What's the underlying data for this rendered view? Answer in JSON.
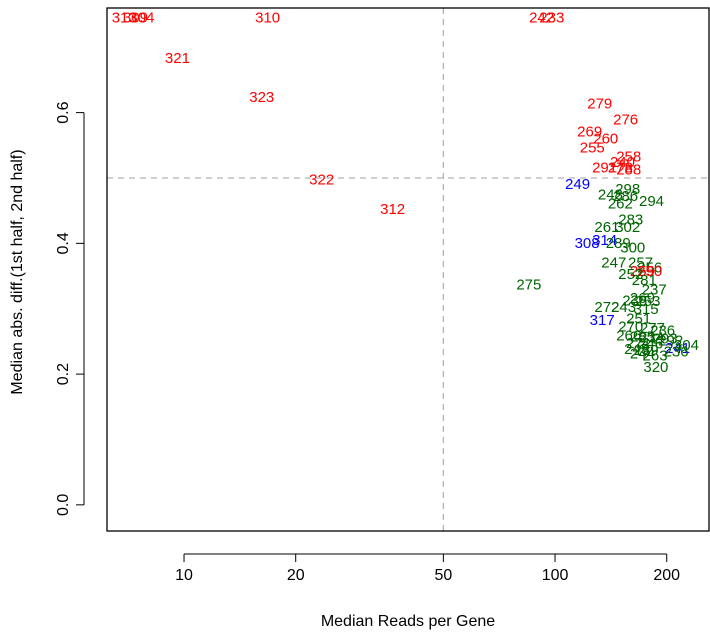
{
  "chart_data": {
    "type": "scatter",
    "title": "",
    "xlabel": "Median Reads per Gene",
    "ylabel": "Median abs. diff.(1st half, 2nd half)",
    "x_scale": "log",
    "xlim": [
      6.2,
      260
    ],
    "ylim": [
      -0.04,
      0.76
    ],
    "x_ticks": [
      10,
      20,
      50,
      100,
      200
    ],
    "y_ticks": [
      0.0,
      0.2,
      0.4,
      0.6
    ],
    "x_tick_labels": [
      "10",
      "20",
      "50",
      "100",
      "200"
    ],
    "y_tick_labels": [
      "0.0",
      "0.2",
      "0.4",
      "0.6"
    ],
    "reference_lines": {
      "x": 50,
      "y": 0.5,
      "style": "dashed",
      "color": "#b3b3b3"
    },
    "grid": false,
    "colors": {
      "red": "#ff0000",
      "blue": "#0000ff",
      "green": "#006400"
    },
    "points": [
      {
        "label": "313",
        "x": 6.9,
        "y": 0.745,
        "color": "red"
      },
      {
        "label": "309",
        "x": 7.4,
        "y": 0.745,
        "color": "red"
      },
      {
        "label": "304",
        "x": 7.7,
        "y": 0.745,
        "color": "red"
      },
      {
        "label": "310",
        "x": 16.8,
        "y": 0.745,
        "color": "red"
      },
      {
        "label": "321",
        "x": 9.6,
        "y": 0.683,
        "color": "red"
      },
      {
        "label": "323",
        "x": 16.2,
        "y": 0.623,
        "color": "red"
      },
      {
        "label": "322",
        "x": 23.5,
        "y": 0.497,
        "color": "red"
      },
      {
        "label": "312",
        "x": 36.5,
        "y": 0.452,
        "color": "red"
      },
      {
        "label": "242",
        "x": 92,
        "y": 0.745,
        "color": "red"
      },
      {
        "label": "233",
        "x": 98,
        "y": 0.745,
        "color": "red"
      },
      {
        "label": "279",
        "x": 132,
        "y": 0.613,
        "color": "red"
      },
      {
        "label": "276",
        "x": 155,
        "y": 0.589,
        "color": "red"
      },
      {
        "label": "269",
        "x": 124,
        "y": 0.57,
        "color": "red"
      },
      {
        "label": "260",
        "x": 137,
        "y": 0.56,
        "color": "red"
      },
      {
        "label": "255",
        "x": 126,
        "y": 0.546,
        "color": "red"
      },
      {
        "label": "258",
        "x": 158,
        "y": 0.532,
        "color": "red"
      },
      {
        "label": "240",
        "x": 152,
        "y": 0.524,
        "color": "red"
      },
      {
        "label": "291",
        "x": 136,
        "y": 0.515,
        "color": "red"
      },
      {
        "label": "278",
        "x": 150,
        "y": 0.515,
        "color": "red"
      },
      {
        "label": "288",
        "x": 158,
        "y": 0.512,
        "color": "red"
      },
      {
        "label": "249",
        "x": 115,
        "y": 0.49,
        "color": "blue"
      },
      {
        "label": "298",
        "x": 157,
        "y": 0.482,
        "color": "green"
      },
      {
        "label": "248",
        "x": 141,
        "y": 0.474,
        "color": "green"
      },
      {
        "label": "286",
        "x": 155,
        "y": 0.472,
        "color": "green"
      },
      {
        "label": "294",
        "x": 182,
        "y": 0.464,
        "color": "green"
      },
      {
        "label": "262",
        "x": 150,
        "y": 0.46,
        "color": "green"
      },
      {
        "label": "283",
        "x": 160,
        "y": 0.436,
        "color": "green"
      },
      {
        "label": "261",
        "x": 138,
        "y": 0.424,
        "color": "green"
      },
      {
        "label": "302",
        "x": 157,
        "y": 0.424,
        "color": "green"
      },
      {
        "label": "308",
        "x": 122,
        "y": 0.4,
        "color": "blue"
      },
      {
        "label": "314",
        "x": 136,
        "y": 0.404,
        "color": "blue"
      },
      {
        "label": "289",
        "x": 148,
        "y": 0.4,
        "color": "green"
      },
      {
        "label": "300",
        "x": 162,
        "y": 0.393,
        "color": "green"
      },
      {
        "label": "247",
        "x": 144,
        "y": 0.37,
        "color": "green"
      },
      {
        "label": "257",
        "x": 170,
        "y": 0.37,
        "color": "green"
      },
      {
        "label": "256",
        "x": 180,
        "y": 0.362,
        "color": "green"
      },
      {
        "label": "259",
        "x": 172,
        "y": 0.357,
        "color": "red"
      },
      {
        "label": "250",
        "x": 180,
        "y": 0.357,
        "color": "red"
      },
      {
        "label": "252",
        "x": 160,
        "y": 0.352,
        "color": "green"
      },
      {
        "label": "281",
        "x": 174,
        "y": 0.343,
        "color": "green"
      },
      {
        "label": "275",
        "x": 85,
        "y": 0.336,
        "color": "green"
      },
      {
        "label": "237",
        "x": 185,
        "y": 0.329,
        "color": "green"
      },
      {
        "label": "269",
        "x": 172,
        "y": 0.316,
        "color": "green"
      },
      {
        "label": "238",
        "x": 164,
        "y": 0.312,
        "color": "green"
      },
      {
        "label": "253",
        "x": 178,
        "y": 0.311,
        "color": "green"
      },
      {
        "label": "272",
        "x": 138,
        "y": 0.302,
        "color": "green"
      },
      {
        "label": "243",
        "x": 153,
        "y": 0.302,
        "color": "green"
      },
      {
        "label": "315",
        "x": 176,
        "y": 0.299,
        "color": "green"
      },
      {
        "label": "317",
        "x": 134,
        "y": 0.282,
        "color": "blue"
      },
      {
        "label": "251",
        "x": 168,
        "y": 0.284,
        "color": "green"
      },
      {
        "label": "270",
        "x": 160,
        "y": 0.272,
        "color": "green"
      },
      {
        "label": "277",
        "x": 183,
        "y": 0.27,
        "color": "green"
      },
      {
        "label": "236",
        "x": 195,
        "y": 0.266,
        "color": "green"
      },
      {
        "label": "266",
        "x": 158,
        "y": 0.258,
        "color": "green"
      },
      {
        "label": "285",
        "x": 172,
        "y": 0.257,
        "color": "green"
      },
      {
        "label": "234",
        "x": 182,
        "y": 0.255,
        "color": "green"
      },
      {
        "label": "293",
        "x": 198,
        "y": 0.254,
        "color": "green"
      },
      {
        "label": "271",
        "x": 168,
        "y": 0.247,
        "color": "green"
      },
      {
        "label": "246",
        "x": 181,
        "y": 0.246,
        "color": "green"
      },
      {
        "label": "292",
        "x": 205,
        "y": 0.251,
        "color": "green"
      },
      {
        "label": "245",
        "x": 166,
        "y": 0.238,
        "color": "green"
      },
      {
        "label": "239",
        "x": 176,
        "y": 0.236,
        "color": "green"
      },
      {
        "label": "241",
        "x": 214,
        "y": 0.239,
        "color": "blue"
      },
      {
        "label": "304",
        "x": 226,
        "y": 0.244,
        "color": "green"
      },
      {
        "label": "236",
        "x": 212,
        "y": 0.234,
        "color": "green"
      },
      {
        "label": "244",
        "x": 172,
        "y": 0.231,
        "color": "green"
      },
      {
        "label": "263",
        "x": 186,
        "y": 0.228,
        "color": "green"
      },
      {
        "label": "320",
        "x": 187,
        "y": 0.21,
        "color": "green"
      }
    ]
  }
}
